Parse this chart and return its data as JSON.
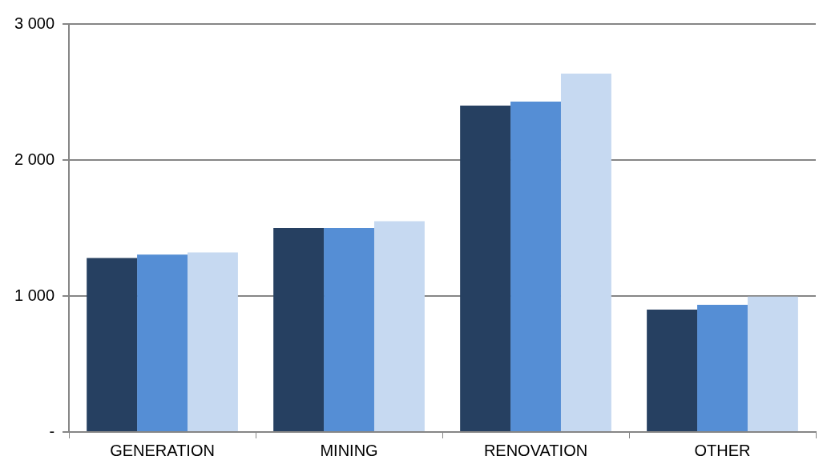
{
  "chart_data": {
    "type": "bar",
    "categories": [
      "GENERATION",
      "MINING",
      "RENOVATION",
      "OTHER"
    ],
    "series": [
      {
        "color": "#264061",
        "values": [
          1280,
          1500,
          2400,
          900
        ]
      },
      {
        "color": "#558ed5",
        "values": [
          1305,
          1500,
          2430,
          935
        ]
      },
      {
        "color": "#c6d9f1",
        "values": [
          1320,
          1550,
          2635,
          995
        ]
      }
    ],
    "ylim": [
      0,
      3000
    ],
    "yticks": [
      {
        "value": 0,
        "label": "-"
      },
      {
        "value": 1000,
        "label": "1 000"
      },
      {
        "value": 2000,
        "label": "2 000"
      },
      {
        "value": 3000,
        "label": "3 000"
      }
    ],
    "grid": "y",
    "legend": false
  }
}
